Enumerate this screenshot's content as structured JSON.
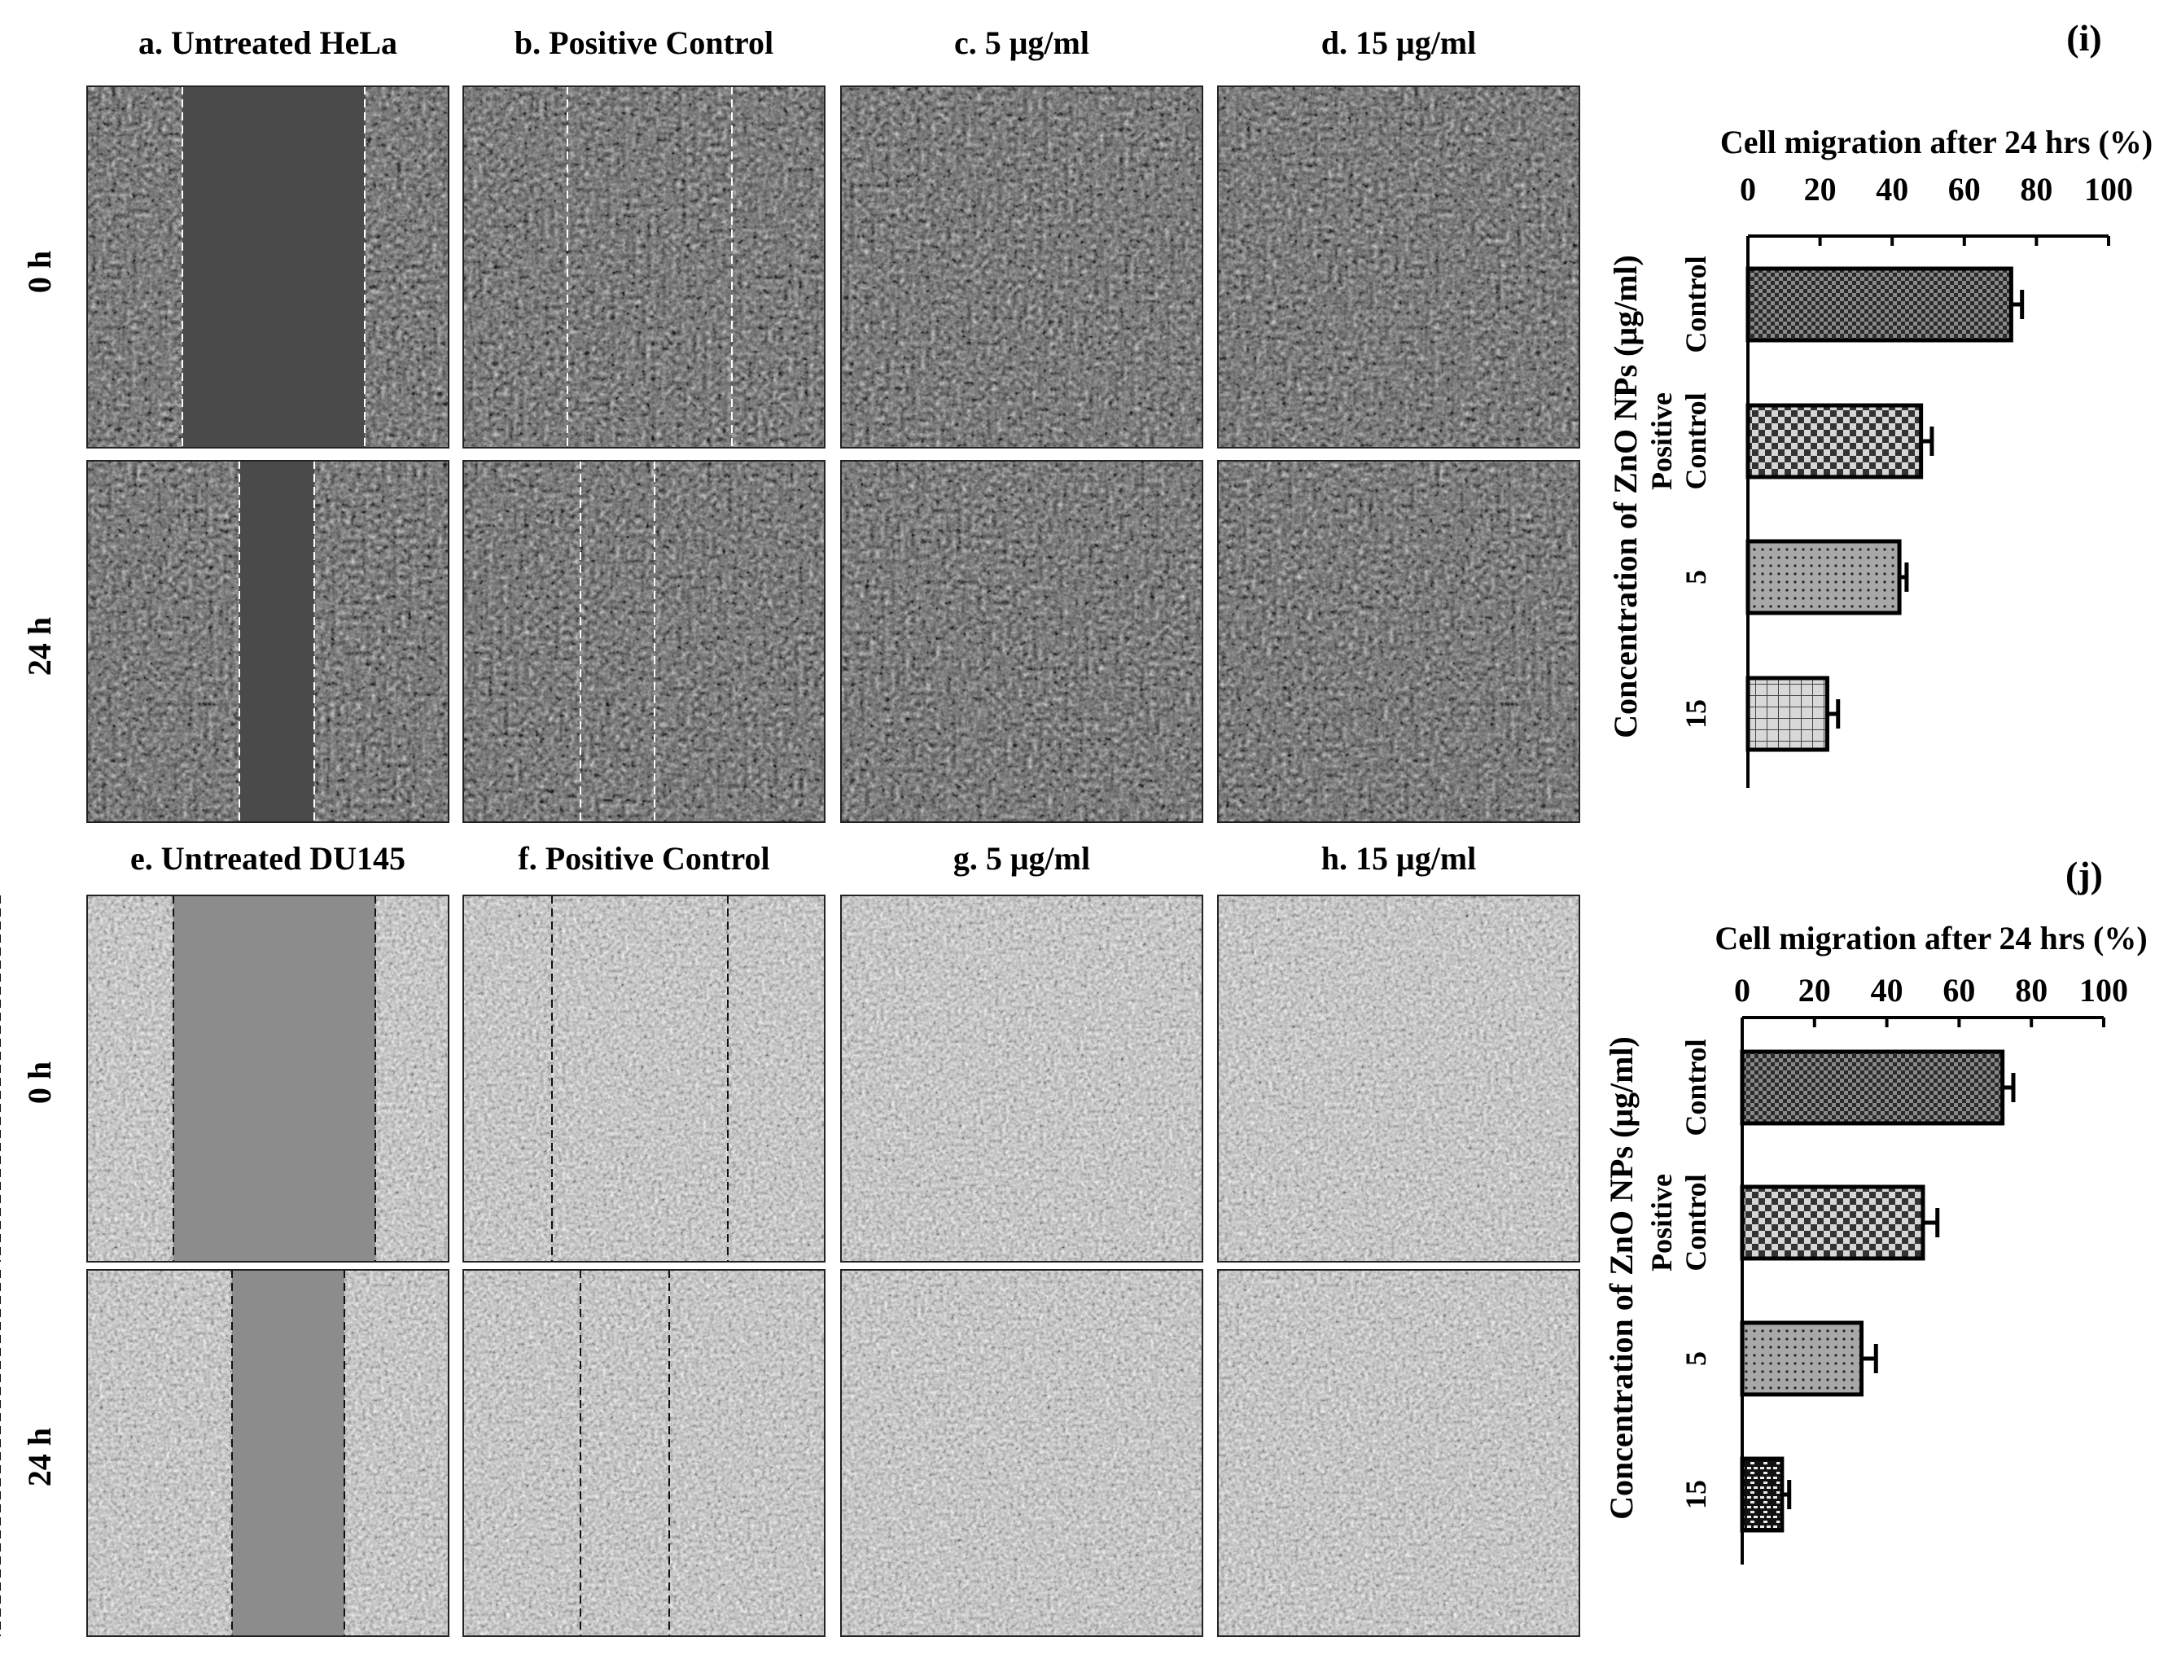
{
  "figure": {
    "hela": {
      "columns": [
        "a. Untreated HeLa",
        "b. Positive Control",
        "c. 5 μg/ml",
        "d. 15 μg/ml"
      ],
      "rows": [
        "0 h",
        "24 h"
      ]
    },
    "du145": {
      "columns": [
        "e. Untreated DU145",
        "f. Positive Control",
        "g. 5 μg/ml",
        "h. 15 μg/ml"
      ],
      "rows": [
        "0 h",
        "24 h"
      ]
    }
  },
  "chart_data": [
    {
      "panel": "(i)",
      "type": "bar",
      "orientation": "horizontal",
      "title": "Cell migration after 24 hrs (%)",
      "ylabel": "Concentration of ZnO NPs (μg/ml)",
      "categories": [
        [
          "Control"
        ],
        [
          "Positive",
          "Control"
        ],
        [
          "5"
        ],
        [
          "15"
        ]
      ],
      "values": [
        73,
        48,
        42,
        22
      ],
      "errors": [
        3,
        3,
        2,
        3
      ],
      "xlim": [
        0,
        100
      ],
      "xticks": [
        "0",
        "20",
        "40",
        "60",
        "80",
        "100"
      ],
      "grid": false,
      "fills": [
        "crosshatch-dense",
        "checker",
        "dots",
        "grid"
      ]
    },
    {
      "panel": "(j)",
      "type": "bar",
      "orientation": "horizontal",
      "title": "Cell migration after 24 hrs (%)",
      "ylabel": "Concentration of ZnO NPs (μg/ml)",
      "categories": [
        [
          "Control"
        ],
        [
          "Positive",
          "Control"
        ],
        [
          "5"
        ],
        [
          "15"
        ]
      ],
      "values": [
        72,
        50,
        33,
        11
      ],
      "errors": [
        3,
        4,
        4,
        2
      ],
      "xlim": [
        0,
        100
      ],
      "xticks": [
        "0",
        "20",
        "40",
        "60",
        "80",
        "100"
      ],
      "grid": false,
      "fills": [
        "crosshatch-dense",
        "checker",
        "dots",
        "brick"
      ]
    }
  ],
  "colors": {
    "background": "#ffffff",
    "ink": "#000000"
  }
}
